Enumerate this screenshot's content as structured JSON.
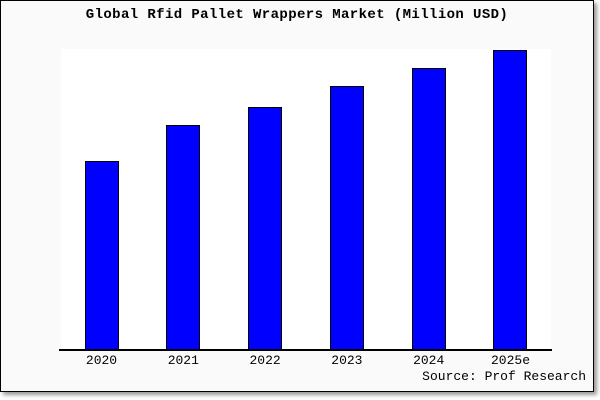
{
  "title": "Global Rfid Pallet Wrappers Market (Million USD)",
  "source_note": "Source: Prof Research",
  "colors": {
    "card_background": "#fafafa",
    "plot_background": "#ffffff",
    "bar_fill": "#0000ff",
    "bar_border": "#000000",
    "axis_line": "#000000",
    "text": "#000000",
    "shadow": "#9a9a9a"
  },
  "chart_data": {
    "type": "bar",
    "title": "Global Rfid Pallet Wrappers Market (Million USD)",
    "categories": [
      "2020",
      "2021",
      "2022",
      "2023",
      "2024",
      "2025e"
    ],
    "values": [
      63,
      75,
      81,
      88,
      94,
      100
    ],
    "value_note": "no y-axis scale shown; values are percent of tallest bar (2025e = 100)",
    "xlabel": "",
    "ylabel": "",
    "ylim": [
      0,
      100
    ],
    "grid": false,
    "legend": false,
    "source": "Source: Prof Research"
  }
}
